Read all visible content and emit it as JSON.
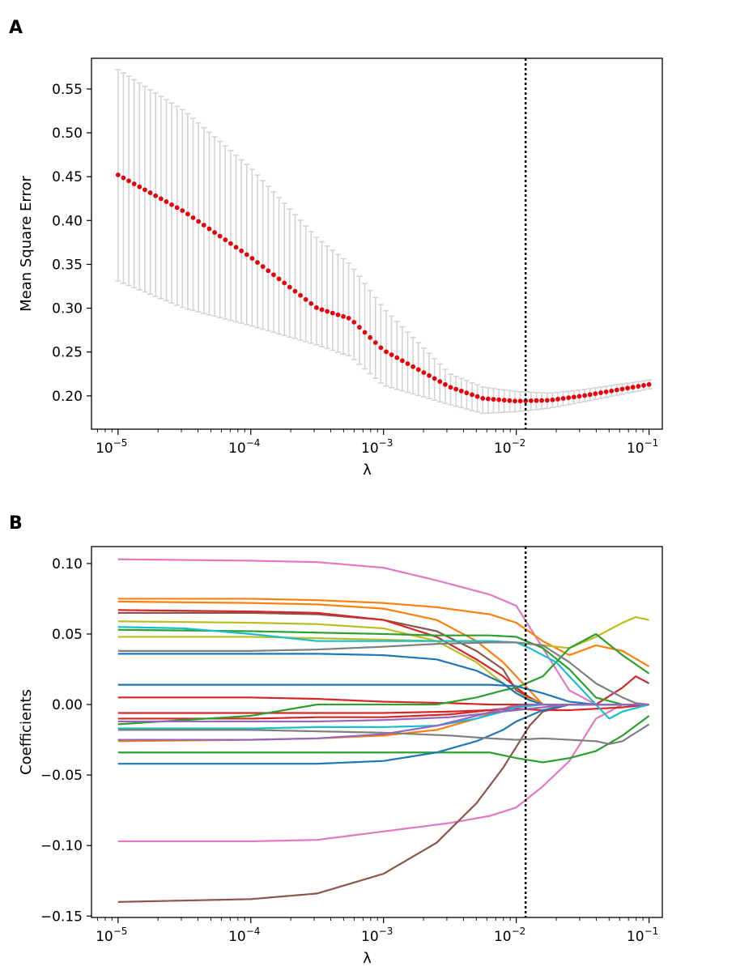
{
  "panels": [
    {
      "letter": "A"
    },
    {
      "letter": "B"
    }
  ],
  "chart_data": [
    {
      "type": "line",
      "panel": "A",
      "description": "Cross-validated mean square error vs regularization strength, with error bars",
      "xlabel": "λ",
      "ylabel": "Mean Square Error",
      "xscale": "log",
      "xlim_log10": [
        -5.2,
        -0.9
      ],
      "ylim": [
        0.162,
        0.585
      ],
      "xticks": [
        {
          "base": "10",
          "exp": "−5",
          "log": -5
        },
        {
          "base": "10",
          "exp": "−4",
          "log": -4
        },
        {
          "base": "10",
          "exp": "−3",
          "log": -3
        },
        {
          "base": "10",
          "exp": "−2",
          "log": -2
        },
        {
          "base": "10",
          "exp": "−1",
          "log": -1
        }
      ],
      "yticks": [
        {
          "label": "0.20",
          "value": 0.2
        },
        {
          "label": "0.25",
          "value": 0.25
        },
        {
          "label": "0.30",
          "value": 0.3
        },
        {
          "label": "0.35",
          "value": 0.35
        },
        {
          "label": "0.40",
          "value": 0.4
        },
        {
          "label": "0.45",
          "value": 0.45
        },
        {
          "label": "0.50",
          "value": 0.5
        },
        {
          "label": "0.55",
          "value": 0.55
        }
      ],
      "n_points": 100,
      "mean_knots_log10": [
        -5.0,
        -4.5,
        -4.0,
        -3.5,
        -3.25,
        -3.0,
        -2.5,
        -2.25,
        -2.0,
        -1.75,
        -1.5,
        -1.0
      ],
      "mean_knots": [
        0.452,
        0.41,
        0.358,
        0.3,
        0.288,
        0.252,
        0.21,
        0.197,
        0.194,
        0.195,
        0.2,
        0.213
      ],
      "upper_knots": [
        0.572,
        0.525,
        0.46,
        0.38,
        0.35,
        0.3,
        0.225,
        0.21,
        0.205,
        0.203,
        0.207,
        0.218
      ],
      "lower_knots": [
        0.331,
        0.3,
        0.28,
        0.258,
        0.245,
        0.212,
        0.19,
        0.18,
        0.182,
        0.186,
        0.193,
        0.208
      ],
      "point_color": "#e8000b",
      "errorbar_color": "#d3d3d3",
      "selected_lambda_log10": -1.93
    },
    {
      "type": "line",
      "panel": "B",
      "description": "Lasso coefficient paths vs regularization strength",
      "xlabel": "λ",
      "ylabel": "Coefficients",
      "xscale": "log",
      "xlim_log10": [
        -5.2,
        -0.9
      ],
      "ylim": [
        -0.151,
        0.112
      ],
      "xticks": [
        {
          "base": "10",
          "exp": "−5",
          "log": -5
        },
        {
          "base": "10",
          "exp": "−4",
          "log": -4
        },
        {
          "base": "10",
          "exp": "−3",
          "log": -3
        },
        {
          "base": "10",
          "exp": "−2",
          "log": -2
        },
        {
          "base": "10",
          "exp": "−1",
          "log": -1
        }
      ],
      "yticks": [
        {
          "label": "−0.15",
          "value": -0.15
        },
        {
          "label": "−0.10",
          "value": -0.1
        },
        {
          "label": "−0.05",
          "value": -0.05
        },
        {
          "label": "0.00",
          "value": 0.0
        },
        {
          "label": "0.05",
          "value": 0.05
        },
        {
          "label": "0.10",
          "value": 0.1
        }
      ],
      "selected_lambda_log10": -1.93,
      "series": [
        {
          "color": "#e377c2",
          "x": [
            -5,
            -4,
            -3.5,
            -3,
            -2.6,
            -2.2,
            -2.0,
            -1.8,
            -1.6,
            -1.4,
            -1.2,
            -1.0
          ],
          "y": [
            0.103,
            0.102,
            0.101,
            0.097,
            0.088,
            0.078,
            0.07,
            0.04,
            0.01,
            0.0,
            0.0,
            0.0
          ]
        },
        {
          "color": "#e377c2",
          "x": [
            -5,
            -4,
            -3.5,
            -3,
            -2.5,
            -2.2,
            -2.0,
            -1.8,
            -1.6,
            -1.4,
            -1.2,
            -1.0
          ],
          "y": [
            -0.097,
            -0.097,
            -0.096,
            -0.09,
            -0.084,
            -0.079,
            -0.073,
            -0.058,
            -0.04,
            -0.01,
            0.0,
            0.0
          ]
        },
        {
          "color": "#8c564b",
          "x": [
            -5,
            -4,
            -3.5,
            -3,
            -2.6,
            -2.3,
            -2.1,
            -2.0,
            -1.9,
            -1.8,
            -1.6,
            -1.0
          ],
          "y": [
            -0.14,
            -0.138,
            -0.134,
            -0.12,
            -0.098,
            -0.07,
            -0.045,
            -0.03,
            -0.015,
            -0.005,
            0.0,
            0.0
          ]
        },
        {
          "color": "#8c564b",
          "x": [
            -5,
            -4,
            -3.5,
            -3,
            -2.6,
            -2.3,
            -2.1,
            -2.0,
            -1.8,
            -1.6,
            -1.0
          ],
          "y": [
            0.065,
            0.065,
            0.064,
            0.06,
            0.052,
            0.038,
            0.025,
            0.01,
            0.0,
            0.0,
            0.0
          ]
        },
        {
          "color": "#ff7f0e",
          "x": [
            -5,
            -4,
            -3.5,
            -3,
            -2.6,
            -2.2,
            -2.0,
            -1.8,
            -1.6,
            -1.4,
            -1.2,
            -1.0
          ],
          "y": [
            0.075,
            0.075,
            0.074,
            0.072,
            0.069,
            0.064,
            0.058,
            0.045,
            0.035,
            0.042,
            0.038,
            0.027
          ]
        },
        {
          "color": "#ff7f0e",
          "x": [
            -5,
            -4,
            -3.5,
            -3,
            -2.6,
            -2.3,
            -2.1,
            -2.0,
            -1.9,
            -1.8,
            -1.6,
            -1.0
          ],
          "y": [
            0.073,
            0.072,
            0.071,
            0.068,
            0.06,
            0.045,
            0.03,
            0.02,
            0.01,
            0.0,
            0.0,
            0.0
          ]
        },
        {
          "color": "#ff7f0e",
          "x": [
            -5,
            -4,
            -3.5,
            -3,
            -2.6,
            -2.3,
            -2.1,
            -2.0,
            -1.9,
            -1.8,
            -1.6,
            -1.0
          ],
          "y": [
            -0.026,
            -0.025,
            -0.024,
            -0.022,
            -0.018,
            -0.01,
            -0.003,
            0.0,
            0.0,
            0.0,
            0.0,
            0.0
          ]
        },
        {
          "color": "#d62728",
          "x": [
            -5,
            -4,
            -3.5,
            -3,
            -2.6,
            -2.3,
            -2.1,
            -2.0,
            -1.9,
            -1.8,
            -1.6,
            -1.0
          ],
          "y": [
            0.067,
            0.066,
            0.065,
            0.06,
            0.048,
            0.032,
            0.02,
            0.012,
            0.005,
            0.0,
            0.0,
            0.0
          ]
        },
        {
          "color": "#d62728",
          "x": [
            -5,
            -4,
            -3.5,
            -3,
            -2.5,
            -2.2,
            -2.0,
            -1.8,
            -1.6,
            -1.4,
            -1.2,
            -1.1,
            -1.0
          ],
          "y": [
            0.005,
            0.005,
            0.004,
            0.002,
            0.001,
            0.0,
            0.0,
            0.0,
            0.0,
            0.0,
            0.012,
            0.02,
            0.015
          ]
        },
        {
          "color": "#d62728",
          "x": [
            -5,
            -4,
            -3.5,
            -3,
            -2.5,
            -2.2,
            -2.0,
            -1.8,
            -1.6,
            -1.4,
            -1.2,
            -1.0
          ],
          "y": [
            -0.006,
            -0.006,
            -0.006,
            -0.006,
            -0.005,
            -0.004,
            -0.003,
            -0.004,
            -0.004,
            -0.003,
            -0.002,
            0.0
          ]
        },
        {
          "color": "#d62728",
          "x": [
            -5,
            -4,
            -3.5,
            -3,
            -2.5,
            -2.2,
            -2.0,
            -1.9,
            -1.8,
            -1.6,
            -1.0
          ],
          "y": [
            -0.01,
            -0.01,
            -0.009,
            -0.009,
            -0.007,
            -0.004,
            -0.002,
            0.0,
            0.0,
            0.0,
            0.0
          ]
        },
        {
          "color": "#bcbd22",
          "x": [
            -5,
            -4,
            -3.5,
            -3,
            -2.6,
            -2.2,
            -2.0,
            -1.8,
            -1.6,
            -1.4,
            -1.2,
            -1.1,
            -1.0
          ],
          "y": [
            0.048,
            0.048,
            0.047,
            0.046,
            0.045,
            0.045,
            0.044,
            0.042,
            0.04,
            0.048,
            0.058,
            0.062,
            0.06
          ]
        },
        {
          "color": "#bcbd22",
          "x": [
            -5,
            -4,
            -3.5,
            -3,
            -2.6,
            -2.3,
            -2.1,
            -2.0,
            -1.8,
            -1.6,
            -1.0
          ],
          "y": [
            0.059,
            0.058,
            0.057,
            0.054,
            0.045,
            0.03,
            0.015,
            0.008,
            0.0,
            0.0,
            0.0
          ]
        },
        {
          "color": "#2ca02c",
          "x": [
            -5,
            -4,
            -3.5,
            -3,
            -2.6,
            -2.2,
            -2.0,
            -1.8,
            -1.6,
            -1.4,
            -1.2,
            -1.0
          ],
          "y": [
            0.053,
            0.052,
            0.051,
            0.05,
            0.049,
            0.049,
            0.048,
            0.04,
            0.025,
            0.005,
            0.0,
            0.0
          ]
        },
        {
          "color": "#2ca02c",
          "x": [
            -5,
            -4,
            -3.5,
            -3,
            -2.6,
            -2.3,
            -2.1,
            -2.0,
            -1.8,
            -1.6,
            -1.4,
            -1.2,
            -1.0
          ],
          "y": [
            -0.014,
            -0.008,
            0.0,
            0.0,
            0.0,
            0.005,
            0.01,
            0.012,
            0.02,
            0.04,
            0.05,
            0.035,
            0.022
          ]
        },
        {
          "color": "#2ca02c",
          "x": [
            -5,
            -4,
            -3.5,
            -3,
            -2.5,
            -2.2,
            -2.0,
            -1.8,
            -1.6,
            -1.4,
            -1.2,
            -1.0
          ],
          "y": [
            -0.034,
            -0.034,
            -0.034,
            -0.034,
            -0.034,
            -0.034,
            -0.038,
            -0.041,
            -0.038,
            -0.033,
            -0.022,
            -0.008
          ]
        },
        {
          "color": "#1f77b4",
          "x": [
            -5,
            -4,
            -3.5,
            -3,
            -2.6,
            -2.3,
            -2.1,
            -2.0,
            -1.9,
            -1.8,
            -1.6,
            -1.0
          ],
          "y": [
            0.036,
            0.036,
            0.036,
            0.035,
            0.032,
            0.024,
            0.015,
            0.008,
            0.003,
            0.0,
            0.0,
            0.0
          ]
        },
        {
          "color": "#1f77b4",
          "x": [
            -5,
            -4,
            -3.5,
            -3,
            -2.6,
            -2.2,
            -2.0,
            -1.8,
            -1.6,
            -1.4,
            -1.0
          ],
          "y": [
            0.014,
            0.014,
            0.014,
            0.014,
            0.014,
            0.014,
            0.013,
            0.008,
            0.002,
            0.0,
            0.0
          ]
        },
        {
          "color": "#1f77b4",
          "x": [
            -5,
            -4,
            -3.5,
            -3,
            -2.6,
            -2.3,
            -2.1,
            -2.0,
            -1.8,
            -1.6,
            -1.0
          ],
          "y": [
            -0.042,
            -0.042,
            -0.042,
            -0.04,
            -0.034,
            -0.026,
            -0.018,
            -0.012,
            -0.004,
            0.0,
            0.0
          ]
        },
        {
          "color": "#17becf",
          "x": [
            -5,
            -4.5,
            -4,
            -3.5,
            -3,
            -2.5,
            -2.2,
            -2.0,
            -1.9,
            -1.7,
            -1.5,
            -1.3,
            -1.2,
            -1.0
          ],
          "y": [
            0.055,
            0.054,
            0.05,
            0.045,
            0.045,
            0.045,
            0.045,
            0.044,
            0.04,
            0.03,
            0.01,
            -0.01,
            -0.005,
            0.0
          ]
        },
        {
          "color": "#17becf",
          "x": [
            -5,
            -4,
            -3.5,
            -3,
            -2.6,
            -2.3,
            -2.1,
            -2.0,
            -1.8,
            -1.6,
            -1.0
          ],
          "y": [
            -0.017,
            -0.017,
            -0.016,
            -0.016,
            -0.015,
            -0.01,
            -0.005,
            -0.002,
            0.0,
            0.0,
            0.0
          ]
        },
        {
          "color": "#7f7f7f",
          "x": [
            -5,
            -4,
            -3.5,
            -3,
            -2.6,
            -2.2,
            -2.0,
            -1.8,
            -1.6,
            -1.4,
            -1.2,
            -1.1,
            -1.0
          ],
          "y": [
            0.038,
            0.038,
            0.039,
            0.041,
            0.043,
            0.044,
            0.044,
            0.042,
            0.03,
            0.015,
            0.005,
            0.001,
            0.0
          ]
        },
        {
          "color": "#7f7f7f",
          "x": [
            -5,
            -4,
            -3.5,
            -3,
            -2.5,
            -2.2,
            -2.0,
            -1.8,
            -1.6,
            -1.4,
            -1.3,
            -1.2,
            -1.0
          ],
          "y": [
            -0.018,
            -0.018,
            -0.019,
            -0.02,
            -0.022,
            -0.024,
            -0.025,
            -0.024,
            -0.025,
            -0.026,
            -0.028,
            -0.026,
            -0.014
          ]
        },
        {
          "color": "#9467bd",
          "x": [
            -5,
            -4,
            -3.5,
            -3,
            -2.6,
            -2.3,
            -2.1,
            -2.0,
            -1.9,
            -1.8,
            -1.6,
            -1.0
          ],
          "y": [
            -0.025,
            -0.025,
            -0.024,
            -0.021,
            -0.015,
            -0.008,
            -0.003,
            -0.001,
            0.0,
            0.0,
            0.0,
            0.0
          ]
        },
        {
          "color": "#9467bd",
          "x": [
            -5,
            -4,
            -3.5,
            -3,
            -2.5,
            -2.2,
            -2.0,
            -1.8,
            -1.6,
            -1.4,
            -1.0
          ],
          "y": [
            -0.012,
            -0.012,
            -0.012,
            -0.011,
            -0.009,
            -0.006,
            -0.004,
            -0.002,
            0.0,
            0.0,
            0.0
          ]
        }
      ]
    }
  ]
}
